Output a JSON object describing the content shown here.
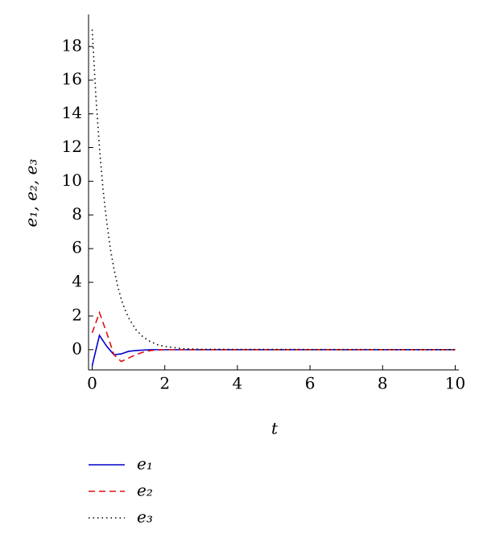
{
  "chart_data": {
    "type": "line",
    "x_label": "t",
    "y_label": "e₁, e₂, e₃",
    "xlim": [
      -0.1,
      10.1
    ],
    "ylim": [
      -1.2,
      19.9
    ],
    "xticks": [
      0,
      2,
      4,
      6,
      8,
      10
    ],
    "yticks": [
      0,
      2,
      4,
      6,
      8,
      10,
      12,
      14,
      16,
      18
    ],
    "series": [
      {
        "name": "e₁",
        "color": "#0000cc",
        "dash": "solid",
        "x": [
          0,
          0.2,
          0.4,
          0.6,
          0.8,
          1.0,
          1.2,
          1.6,
          2,
          10
        ],
        "values": [
          -0.95,
          0.85,
          0.2,
          -0.3,
          -0.25,
          -0.1,
          -0.05,
          0,
          0,
          0
        ]
      },
      {
        "name": "e₂",
        "color": "#dd1111",
        "dash": "dashed",
        "x": [
          0,
          0.2,
          0.4,
          0.6,
          0.8,
          1.0,
          1.2,
          1.4,
          1.6,
          2,
          10
        ],
        "values": [
          1.0,
          2.2,
          1.0,
          -0.3,
          -0.7,
          -0.5,
          -0.3,
          -0.15,
          -0.05,
          0,
          0
        ]
      },
      {
        "name": "e₃",
        "color": "#000000",
        "dash": "dotted",
        "x": [
          0,
          0.1,
          0.2,
          0.3,
          0.4,
          0.5,
          0.6,
          0.7,
          0.8,
          0.9,
          1.0,
          1.2,
          1.4,
          1.6,
          1.8,
          2.0,
          2.5,
          3,
          10
        ],
        "values": [
          19,
          15.1,
          12.0,
          9.5,
          7.6,
          6.0,
          4.8,
          3.8,
          3.0,
          2.4,
          1.9,
          1.2,
          0.76,
          0.48,
          0.3,
          0.19,
          0.06,
          0.02,
          0
        ]
      }
    ]
  }
}
